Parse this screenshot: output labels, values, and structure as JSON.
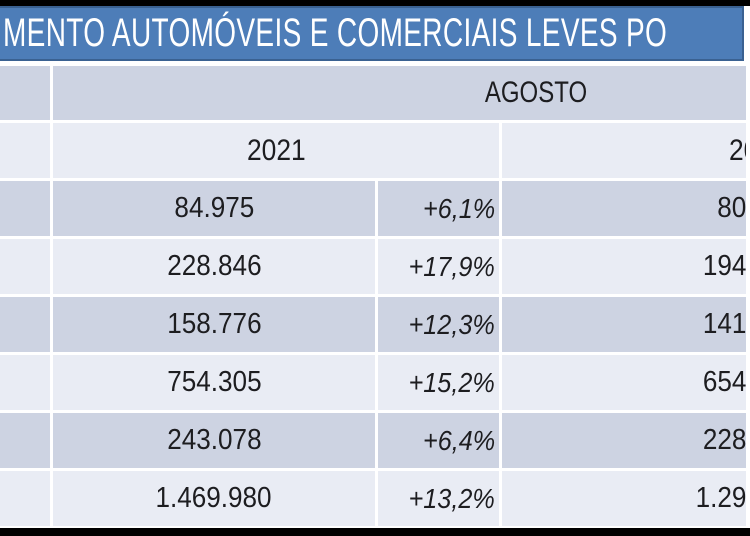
{
  "chart_data": {
    "type": "table",
    "title_fragment": "MENTO AUTOMÓVEIS E COMERCIAIS LEVES PO",
    "month_header": "AGOSTO",
    "col_year_left": "2021",
    "col_year_right_fragment": "20",
    "rows": [
      {
        "value_2021": "84.975",
        "variation": "+6,1%",
        "right_fragment": "80"
      },
      {
        "value_2021": "228.846",
        "variation": "+17,9%",
        "right_fragment": "194"
      },
      {
        "value_2021": "158.776",
        "variation": "+12,3%",
        "right_fragment": "141"
      },
      {
        "value_2021": "754.305",
        "variation": "+15,2%",
        "right_fragment": "654"
      },
      {
        "value_2021": "243.078",
        "variation": "+6,4%",
        "right_fragment": "228"
      },
      {
        "value_2021": "1.469.980",
        "variation": "+13,2%",
        "right_fragment": "1.29"
      }
    ],
    "layout_hints": {
      "legend": "none",
      "grid": "white cell gaps, banded rows",
      "truncated_edges": "title cut left/right; rightmost year column cut at right edge"
    }
  },
  "colors": {
    "title_bar_blue": "#4d7db8",
    "title_bar_border": "#3a6191",
    "band_dark": "#cdd3e2",
    "band_light": "#e9ecf4",
    "outer_border_black": "#000000",
    "text": "#1d1d20",
    "title_text": "#ffffff"
  }
}
